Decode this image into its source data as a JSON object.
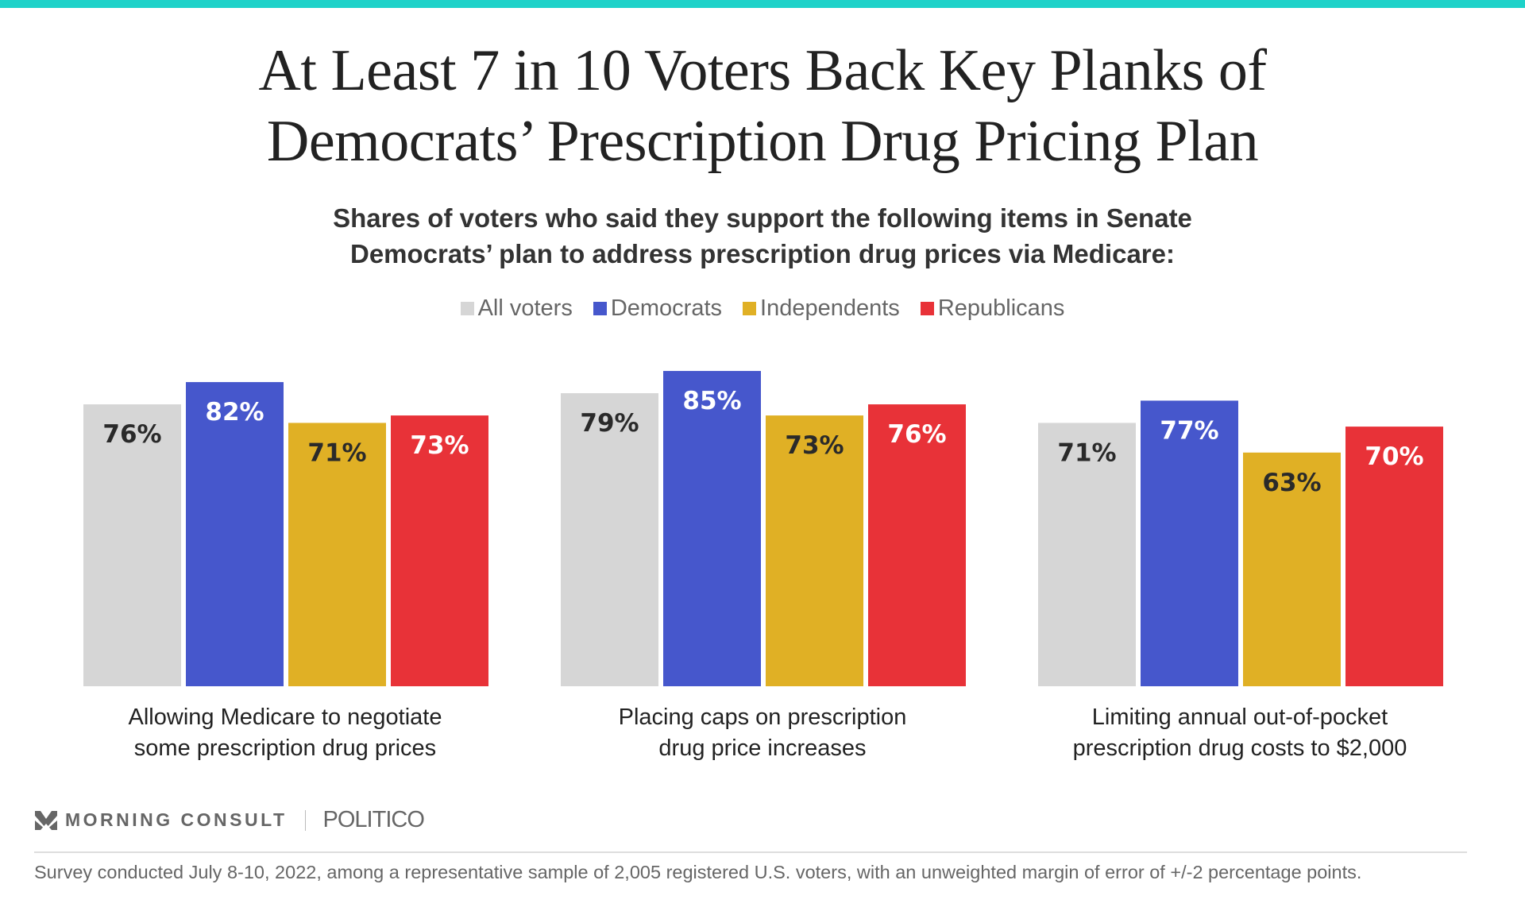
{
  "title_lines": [
    "At Least 7 in 10 Voters Back Key Planks of",
    "Democrats’ Prescription Drug Pricing Plan"
  ],
  "subtitle_lines": [
    "Shares of voters who said they support the following items in Senate",
    "Democrats’ plan to address prescription drug prices via Medicare:"
  ],
  "chart_data": {
    "type": "bar",
    "title": "At Least 7 in 10 Voters Back Key Planks of Democrats’ Prescription Drug Pricing Plan",
    "subtitle": "Shares of voters who said they support the following items in Senate Democrats’ plan to address prescription drug prices via Medicare:",
    "categories": [
      [
        "Allowing Medicare to negotiate",
        "some prescription drug prices"
      ],
      [
        "Placing caps on prescription",
        "drug price increases"
      ],
      [
        "Limiting annual out-of-pocket",
        "prescription drug costs to $2,000"
      ]
    ],
    "series": [
      {
        "name": "All voters",
        "color": "#d6d6d6",
        "label_color": "#2a2a2a",
        "values": [
          76,
          79,
          71
        ]
      },
      {
        "name": "Democrats",
        "color": "#4657cc",
        "label_color": "#ffffff",
        "values": [
          82,
          85,
          77
        ]
      },
      {
        "name": "Independents",
        "color": "#e0b025",
        "label_color": "#2a2a2a",
        "values": [
          71,
          73,
          63
        ]
      },
      {
        "name": "Republicans",
        "color": "#e83238",
        "label_color": "#ffffff",
        "values": [
          73,
          76,
          70
        ]
      }
    ],
    "value_suffix": "%",
    "ylim": [
      0,
      100
    ],
    "grid": false,
    "legend": "top-center"
  },
  "brand": {
    "accent": "#1ed2c9",
    "logo1": "MORNING CONSULT",
    "logo2": "POLITICO"
  },
  "footnote": "Survey conducted July 8-10, 2022, among a representative sample of 2,005 registered U.S. voters, with an unweighted margin of error of +/-2 percentage points."
}
